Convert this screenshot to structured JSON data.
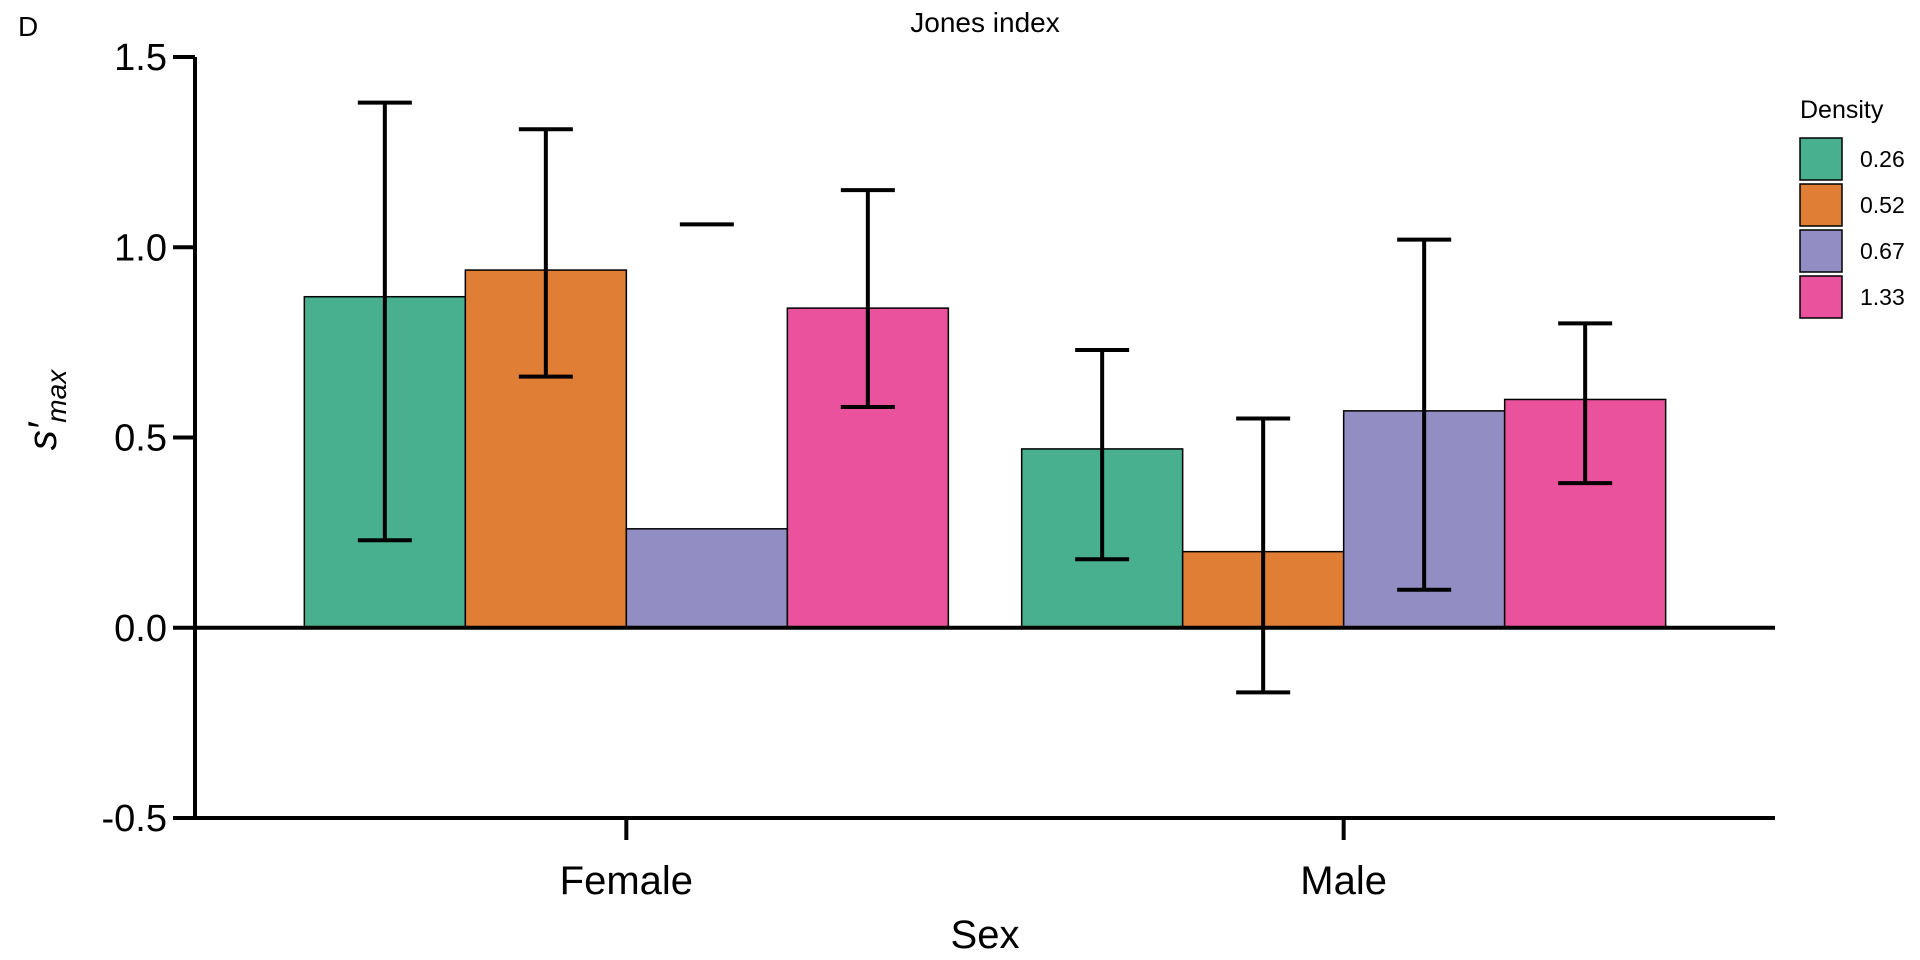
{
  "panel_label": "D",
  "chart_data": {
    "type": "bar",
    "title": "Jones index",
    "xlabel": "Sex",
    "ylabel_main": "s′",
    "ylabel_sub": "max",
    "categories": [
      "Female",
      "Male"
    ],
    "ylim": [
      -0.5,
      1.5
    ],
    "yticks": [
      -0.5,
      0.0,
      0.5,
      1.0,
      1.5
    ],
    "ytick_labels": [
      "-0.5",
      "0.0",
      "0.5",
      "1.0",
      "1.5"
    ],
    "zero_line": true,
    "grid": false,
    "legend": {
      "title": "Density",
      "placement": "right"
    },
    "series": [
      {
        "name": "0.26",
        "color": "#48b08f",
        "values": [
          0.87,
          0.47
        ],
        "err_low": [
          0.23,
          0.18
        ],
        "err_high": [
          1.38,
          0.73
        ]
      },
      {
        "name": "0.52",
        "color": "#e07e35",
        "values": [
          0.94,
          0.2
        ],
        "err_low": [
          0.66,
          -0.17
        ],
        "err_high": [
          1.31,
          0.55
        ]
      },
      {
        "name": "0.67",
        "color": "#928dc2",
        "values": [
          0.26,
          0.57
        ],
        "err_low": [
          null,
          0.1
        ],
        "err_high": [
          1.06,
          1.02
        ]
      },
      {
        "name": "1.33",
        "color": "#ea529d",
        "values": [
          0.84,
          0.6
        ],
        "err_low": [
          0.58,
          0.38
        ],
        "err_high": [
          1.15,
          0.8
        ]
      }
    ]
  }
}
